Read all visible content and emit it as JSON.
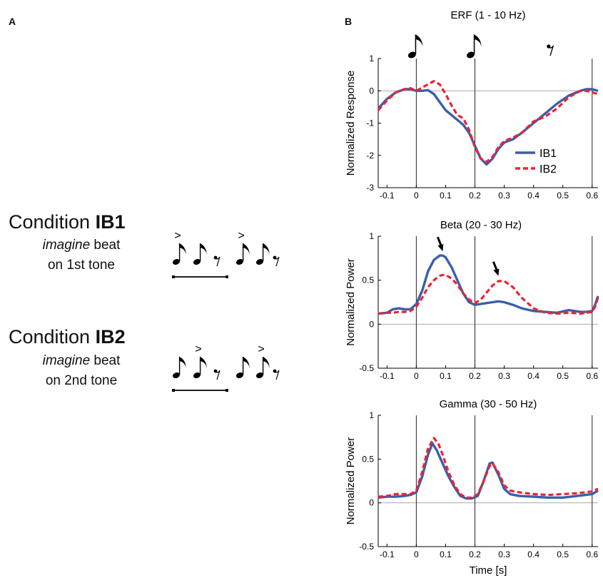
{
  "panel_a": {
    "label": "A",
    "conditions": [
      {
        "title_prefix": "Condition",
        "title_code": "IB1",
        "line1_em": "imagine",
        "line1_rest": "beat",
        "line2": "on 1st tone",
        "accent": ">",
        "accent_positions": [
          0,
          3
        ]
      },
      {
        "title_prefix": "Condition",
        "title_code": "IB2",
        "line1_em": "imagine",
        "line1_rest": "beat",
        "line2": "on 2nd tone",
        "accent": ">",
        "accent_positions": [
          1,
          4
        ]
      }
    ]
  },
  "panel_b": {
    "label": "B"
  },
  "colors": {
    "IB1": "#3a5fa8",
    "IB2": "#ee2233",
    "stim_line": "#222222",
    "zero_line": "#aaaaaa"
  },
  "chart_data": [
    {
      "type": "line",
      "title": "ERF (1 - 10 Hz)",
      "ylabel": "Normalized Response",
      "xlabel": "",
      "xlim": [
        -0.13,
        0.62
      ],
      "ylim": [
        -3,
        1
      ],
      "yticks": [
        -3,
        -2,
        -1,
        0,
        1
      ],
      "xticks": [
        -0.1,
        0,
        0.1,
        0.2,
        0.3,
        0.4,
        0.5,
        0.6
      ],
      "xtick_labels": [
        "-0.1",
        "0",
        "0.1",
        "0.2",
        "0.3",
        "0.4",
        "0.5",
        "0.6"
      ],
      "stimulus_lines": [
        0,
        0.2,
        0.6
      ],
      "note_icons": [
        "eighth-note",
        "eighth-note",
        "eighth-rest"
      ],
      "legend": {
        "position": "bottom-right",
        "entries": [
          "IB1",
          "IB2"
        ]
      },
      "series": [
        {
          "name": "IB1",
          "style": "solid",
          "x": [
            -0.13,
            -0.1,
            -0.07,
            -0.04,
            -0.02,
            0,
            0.02,
            0.04,
            0.06,
            0.08,
            0.1,
            0.12,
            0.14,
            0.16,
            0.18,
            0.2,
            0.22,
            0.24,
            0.26,
            0.28,
            0.3,
            0.33,
            0.36,
            0.4,
            0.44,
            0.48,
            0.52,
            0.56,
            0.58,
            0.6,
            0.62
          ],
          "y": [
            -0.55,
            -0.25,
            -0.05,
            0.05,
            0.05,
            0.0,
            0.0,
            0.02,
            -0.1,
            -0.35,
            -0.6,
            -0.75,
            -0.9,
            -1.05,
            -1.3,
            -1.7,
            -2.1,
            -2.28,
            -2.1,
            -1.8,
            -1.6,
            -1.5,
            -1.3,
            -1.0,
            -0.7,
            -0.4,
            -0.15,
            0.0,
            0.05,
            0.05,
            0.0
          ]
        },
        {
          "name": "IB2",
          "style": "dashed",
          "x": [
            -0.13,
            -0.1,
            -0.07,
            -0.04,
            -0.02,
            0,
            0.02,
            0.04,
            0.06,
            0.08,
            0.1,
            0.12,
            0.14,
            0.16,
            0.18,
            0.2,
            0.22,
            0.24,
            0.26,
            0.28,
            0.3,
            0.33,
            0.36,
            0.4,
            0.44,
            0.48,
            0.52,
            0.56,
            0.58,
            0.6,
            0.62
          ],
          "y": [
            -0.6,
            -0.3,
            -0.05,
            0.05,
            0.08,
            0.0,
            0.1,
            0.2,
            0.3,
            0.2,
            -0.1,
            -0.45,
            -0.75,
            -0.85,
            -1.2,
            -1.75,
            -2.1,
            -2.2,
            -2.05,
            -1.75,
            -1.55,
            -1.45,
            -1.3,
            -0.95,
            -0.8,
            -0.55,
            -0.2,
            0.0,
            0.0,
            -0.05,
            -0.1
          ]
        }
      ]
    },
    {
      "type": "line",
      "title": "Beta (20 - 30 Hz)",
      "ylabel": "Normalized Power",
      "xlabel": "",
      "xlim": [
        -0.13,
        0.62
      ],
      "ylim": [
        -0.5,
        1
      ],
      "yticks": [
        -0.5,
        0,
        0.5,
        1
      ],
      "xticks": [
        -0.1,
        0,
        0.1,
        0.2,
        0.3,
        0.4,
        0.5,
        0.6
      ],
      "xtick_labels": [
        "-0.1",
        "0",
        "0.1",
        "0.2",
        "0.3",
        "0.4",
        "0.5",
        "0.6"
      ],
      "stimulus_lines": [
        0,
        0.2,
        0.6
      ],
      "arrows_at": [
        [
          0.09,
          0.78
        ],
        [
          0.28,
          0.5
        ]
      ],
      "series": [
        {
          "name": "IB1",
          "style": "solid",
          "x": [
            -0.13,
            -0.1,
            -0.08,
            -0.06,
            -0.04,
            -0.02,
            0,
            0.02,
            0.04,
            0.06,
            0.08,
            0.09,
            0.1,
            0.12,
            0.14,
            0.16,
            0.18,
            0.2,
            0.22,
            0.24,
            0.26,
            0.28,
            0.3,
            0.33,
            0.36,
            0.4,
            0.44,
            0.48,
            0.52,
            0.56,
            0.58,
            0.6,
            0.61,
            0.62
          ],
          "y": [
            0.12,
            0.13,
            0.17,
            0.18,
            0.17,
            0.17,
            0.23,
            0.38,
            0.6,
            0.73,
            0.78,
            0.78,
            0.76,
            0.65,
            0.5,
            0.35,
            0.25,
            0.22,
            0.23,
            0.24,
            0.25,
            0.26,
            0.25,
            0.22,
            0.18,
            0.15,
            0.14,
            0.13,
            0.16,
            0.14,
            0.14,
            0.15,
            0.22,
            0.32
          ]
        },
        {
          "name": "IB2",
          "style": "dashed",
          "x": [
            -0.13,
            -0.1,
            -0.08,
            -0.06,
            -0.04,
            -0.02,
            0,
            0.02,
            0.04,
            0.06,
            0.08,
            0.09,
            0.1,
            0.12,
            0.14,
            0.16,
            0.18,
            0.2,
            0.22,
            0.24,
            0.26,
            0.28,
            0.3,
            0.33,
            0.36,
            0.4,
            0.44,
            0.48,
            0.52,
            0.56,
            0.58,
            0.6,
            0.61,
            0.62
          ],
          "y": [
            0.12,
            0.13,
            0.13,
            0.14,
            0.14,
            0.15,
            0.2,
            0.3,
            0.42,
            0.5,
            0.55,
            0.56,
            0.56,
            0.52,
            0.45,
            0.35,
            0.28,
            0.24,
            0.28,
            0.36,
            0.44,
            0.49,
            0.49,
            0.42,
            0.3,
            0.18,
            0.13,
            0.12,
            0.13,
            0.12,
            0.13,
            0.14,
            0.2,
            0.3
          ]
        }
      ]
    },
    {
      "type": "line",
      "title": "Gamma (30 - 50 Hz)",
      "ylabel": "Normalized Power",
      "xlabel": "Time [s]",
      "xlim": [
        -0.13,
        0.62
      ],
      "ylim": [
        -0.5,
        1
      ],
      "yticks": [
        -0.5,
        0,
        0.5,
        1
      ],
      "xticks": [
        -0.1,
        0,
        0.1,
        0.2,
        0.3,
        0.4,
        0.5,
        0.6
      ],
      "xtick_labels": [
        "-0.1",
        "0",
        "0.1",
        "0.2",
        "0.3",
        "0.4",
        "0.5",
        "0.6"
      ],
      "stimulus_lines": [
        0,
        0.2,
        0.6
      ],
      "series": [
        {
          "name": "IB1",
          "style": "solid",
          "x": [
            -0.13,
            -0.1,
            -0.07,
            -0.04,
            -0.02,
            0,
            0.02,
            0.04,
            0.055,
            0.07,
            0.09,
            0.11,
            0.13,
            0.15,
            0.17,
            0.19,
            0.21,
            0.23,
            0.25,
            0.26,
            0.28,
            0.3,
            0.32,
            0.35,
            0.4,
            0.45,
            0.5,
            0.55,
            0.6,
            0.62
          ],
          "y": [
            0.06,
            0.07,
            0.07,
            0.08,
            0.09,
            0.12,
            0.3,
            0.55,
            0.68,
            0.6,
            0.45,
            0.3,
            0.18,
            0.08,
            0.05,
            0.05,
            0.08,
            0.25,
            0.45,
            0.46,
            0.32,
            0.16,
            0.1,
            0.08,
            0.07,
            0.06,
            0.06,
            0.08,
            0.1,
            0.14
          ]
        },
        {
          "name": "IB2",
          "style": "dashed",
          "x": [
            -0.13,
            -0.1,
            -0.07,
            -0.04,
            -0.02,
            0,
            0.02,
            0.04,
            0.06,
            0.075,
            0.09,
            0.11,
            0.13,
            0.15,
            0.17,
            0.19,
            0.21,
            0.23,
            0.25,
            0.26,
            0.28,
            0.3,
            0.32,
            0.35,
            0.4,
            0.45,
            0.5,
            0.55,
            0.6,
            0.62
          ],
          "y": [
            0.07,
            0.08,
            0.1,
            0.1,
            0.1,
            0.14,
            0.35,
            0.62,
            0.74,
            0.68,
            0.55,
            0.35,
            0.2,
            0.1,
            0.06,
            0.06,
            0.1,
            0.25,
            0.42,
            0.45,
            0.35,
            0.2,
            0.14,
            0.12,
            0.1,
            0.09,
            0.1,
            0.11,
            0.13,
            0.16
          ]
        }
      ]
    }
  ]
}
